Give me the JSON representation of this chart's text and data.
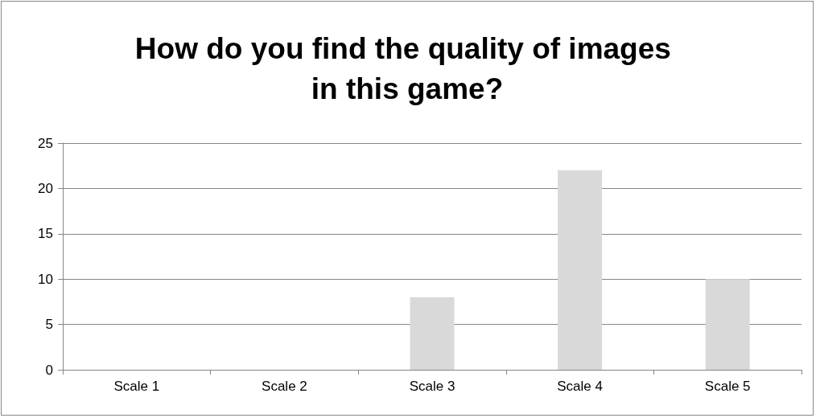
{
  "chart_data": {
    "type": "bar",
    "title": "How do you find the quality of images in this game?",
    "categories": [
      "Scale 1",
      "Scale 2",
      "Scale 3",
      "Scale 4",
      "Scale 5"
    ],
    "values": [
      0,
      0,
      8,
      22,
      10
    ],
    "color": "#d9d9d9",
    "ylim": [
      0,
      25
    ],
    "yticks": [
      0,
      5,
      10,
      15,
      20,
      25
    ],
    "grid": "y"
  }
}
